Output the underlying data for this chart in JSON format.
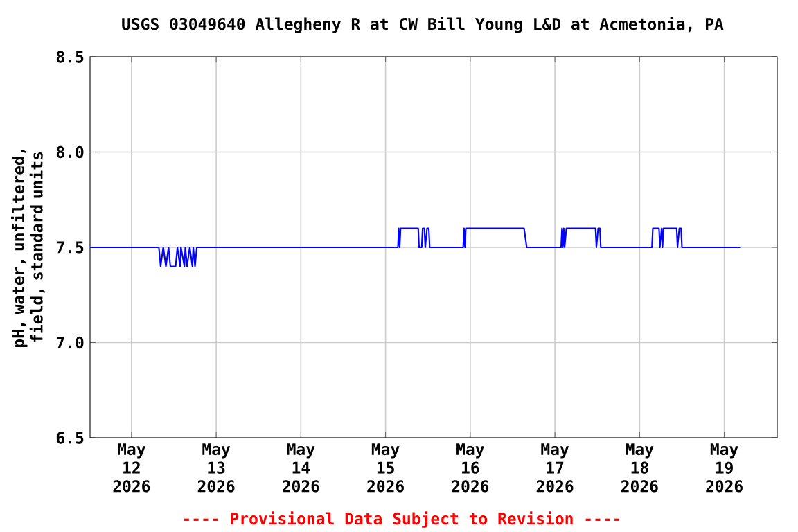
{
  "chart_data": {
    "type": "line",
    "title": "USGS 03049640 Allegheny R at CW Bill Young L&D  at Acmetonia, PA",
    "ylabel": "pH, water, unfiltered, field, standard units",
    "annotations": [
      "---- Provisional Data Subject to Revision ----"
    ],
    "color": "#0000ff",
    "grid": true,
    "xlim": [
      "2026-05-11T12:15",
      "2026-05-19T15:00"
    ],
    "xticks": [
      {
        "value": "2026-05-12",
        "label": "May 12 2026"
      },
      {
        "value": "2026-05-13",
        "label": "May 13 2026"
      },
      {
        "value": "2026-05-14",
        "label": "May 14 2026"
      },
      {
        "value": "2026-05-15",
        "label": "May 15 2026"
      },
      {
        "value": "2026-05-16",
        "label": "May 16 2026"
      },
      {
        "value": "2026-05-17",
        "label": "May 17 2026"
      },
      {
        "value": "2026-05-18",
        "label": "May 18 2026"
      },
      {
        "value": "2026-05-19",
        "label": "May 19 2026"
      }
    ],
    "ylim": [
      6.5,
      8.5
    ],
    "yticks": [
      6.5,
      {
        "value": 7,
        "label": "7.0"
      },
      7.5,
      {
        "value": 8,
        "label": "8.0"
      },
      8.5
    ],
    "x": [
      "2026-05-11T12:15",
      "2026-05-12T07:45",
      "2026-05-12T08:15",
      "2026-05-12T09:00",
      "2026-05-12T09:45",
      "2026-05-12T10:30",
      "2026-05-12T11:00",
      "2026-05-12T12:30",
      "2026-05-12T13:00",
      "2026-05-12T13:45",
      "2026-05-12T14:00",
      "2026-05-12T15:00",
      "2026-05-12T15:15",
      "2026-05-12T15:45",
      "2026-05-12T16:30",
      "2026-05-12T17:15",
      "2026-05-12T17:30",
      "2026-05-12T18:00",
      "2026-05-12T18:30",
      "2026-05-15T03:30",
      "2026-05-15T03:45",
      "2026-05-15T04:00",
      "2026-05-15T04:15",
      "2026-05-15T09:15",
      "2026-05-15T09:30",
      "2026-05-15T10:15",
      "2026-05-15T10:30",
      "2026-05-15T11:00",
      "2026-05-15T11:15",
      "2026-05-15T11:45",
      "2026-05-15T12:15",
      "2026-05-15T12:30",
      "2026-05-15T22:00",
      "2026-05-15T22:15",
      "2026-05-15T22:30",
      "2026-05-15T22:45",
      "2026-05-16T15:15",
      "2026-05-16T16:00",
      "2026-05-17T01:45",
      "2026-05-17T02:00",
      "2026-05-17T02:15",
      "2026-05-17T02:30",
      "2026-05-17T02:45",
      "2026-05-17T03:15",
      "2026-05-17T11:30",
      "2026-05-17T11:45",
      "2026-05-17T12:15",
      "2026-05-17T12:45",
      "2026-05-17T13:00",
      "2026-05-18T03:30",
      "2026-05-18T03:45",
      "2026-05-18T05:30",
      "2026-05-18T05:45",
      "2026-05-18T06:15",
      "2026-05-18T06:30",
      "2026-05-18T06:45",
      "2026-05-18T10:30",
      "2026-05-18T10:45",
      "2026-05-18T11:15",
      "2026-05-18T11:45",
      "2026-05-18T12:00",
      "2026-05-19T04:30"
    ],
    "values": [
      7.5,
      7.5,
      7.4,
      7.5,
      7.4,
      7.5,
      7.4,
      7.4,
      7.5,
      7.4,
      7.5,
      7.4,
      7.5,
      7.4,
      7.5,
      7.4,
      7.5,
      7.4,
      7.5,
      7.5,
      7.6,
      7.5,
      7.6,
      7.6,
      7.5,
      7.5,
      7.6,
      7.6,
      7.5,
      7.6,
      7.6,
      7.5,
      7.5,
      7.6,
      7.5,
      7.6,
      7.6,
      7.5,
      7.5,
      7.6,
      7.5,
      7.6,
      7.5,
      7.6,
      7.6,
      7.5,
      7.6,
      7.6,
      7.5,
      7.5,
      7.6,
      7.6,
      7.5,
      7.6,
      7.5,
      7.6,
      7.6,
      7.5,
      7.6,
      7.6,
      7.5,
      7.5
    ]
  }
}
